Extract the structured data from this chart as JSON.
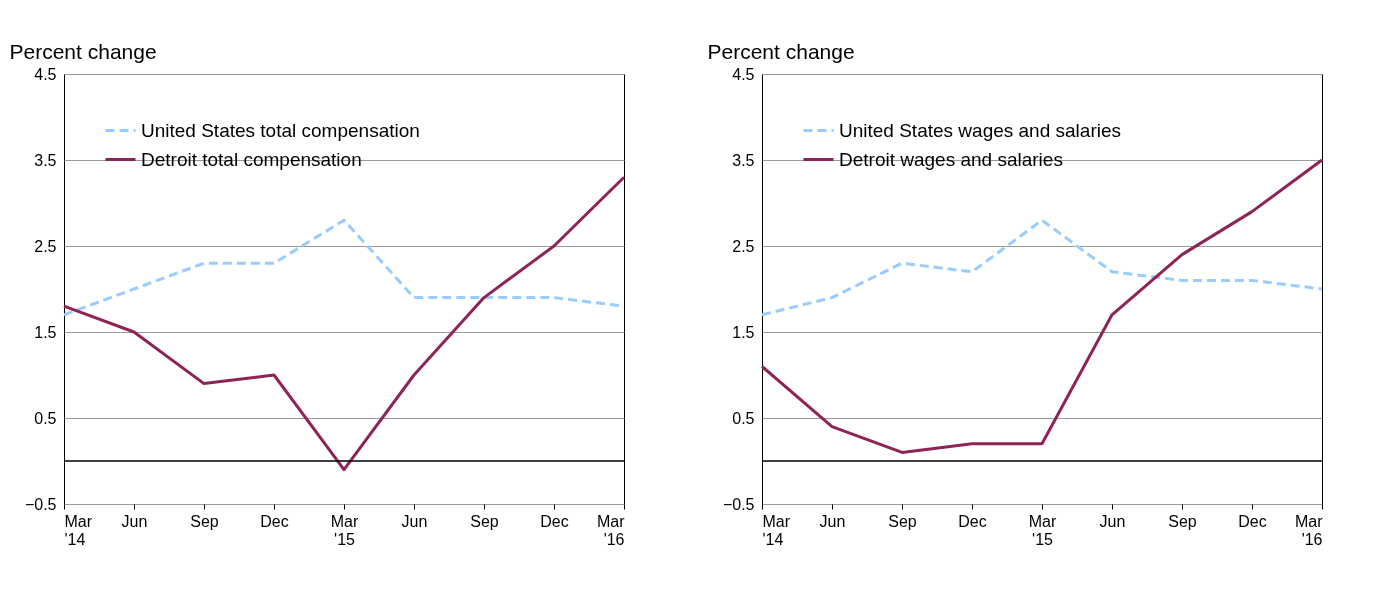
{
  "chart_data": [
    {
      "type": "line",
      "ylabel": "Percent change",
      "categories": [
        "Mar\n'14",
        "Jun",
        "Sep",
        "Dec",
        "Mar\n'15",
        "Jun",
        "Sep",
        "Dec",
        "Mar\n'16"
      ],
      "ylim": [
        -0.5,
        4.5
      ],
      "yticks": [
        -0.5,
        0.5,
        1.5,
        2.5,
        3.5,
        4.5
      ],
      "grid": "y",
      "legend": "top left",
      "ref_lines": [
        {
          "axis": "y",
          "value": 0,
          "color": "#000000"
        }
      ],
      "series": [
        {
          "name": "United States total compensation",
          "color": "#99ccff",
          "line_style": "dashed",
          "values": [
            1.7,
            2.0,
            2.3,
            2.3,
            2.8,
            1.9,
            1.9,
            1.9,
            1.8
          ]
        },
        {
          "name": "Detroit total compensation",
          "color": "#8e2456",
          "line_style": "solid",
          "values": [
            1.8,
            1.5,
            0.9,
            1.0,
            -0.1,
            1.0,
            1.9,
            2.5,
            3.3
          ]
        }
      ]
    },
    {
      "type": "line",
      "ylabel": "Percent change",
      "categories": [
        "Mar\n'14",
        "Jun",
        "Sep",
        "Dec",
        "Mar\n'15",
        "Jun",
        "Sep",
        "Dec",
        "Mar\n'16"
      ],
      "ylim": [
        -0.5,
        4.5
      ],
      "yticks": [
        -0.5,
        0.5,
        1.5,
        2.5,
        3.5,
        4.5
      ],
      "grid": "y",
      "legend": "top left",
      "ref_lines": [
        {
          "axis": "y",
          "value": 0,
          "color": "#000000"
        }
      ],
      "series": [
        {
          "name": "United States wages and salaries",
          "color": "#99ccff",
          "line_style": "dashed",
          "values": [
            1.7,
            1.9,
            2.3,
            2.2,
            2.8,
            2.2,
            2.1,
            2.1,
            2.0
          ]
        },
        {
          "name": "Detroit wages and salaries",
          "color": "#8e2456",
          "line_style": "solid",
          "values": [
            1.1,
            0.4,
            0.1,
            0.2,
            0.2,
            1.7,
            2.4,
            2.9,
            3.5
          ]
        }
      ]
    }
  ]
}
